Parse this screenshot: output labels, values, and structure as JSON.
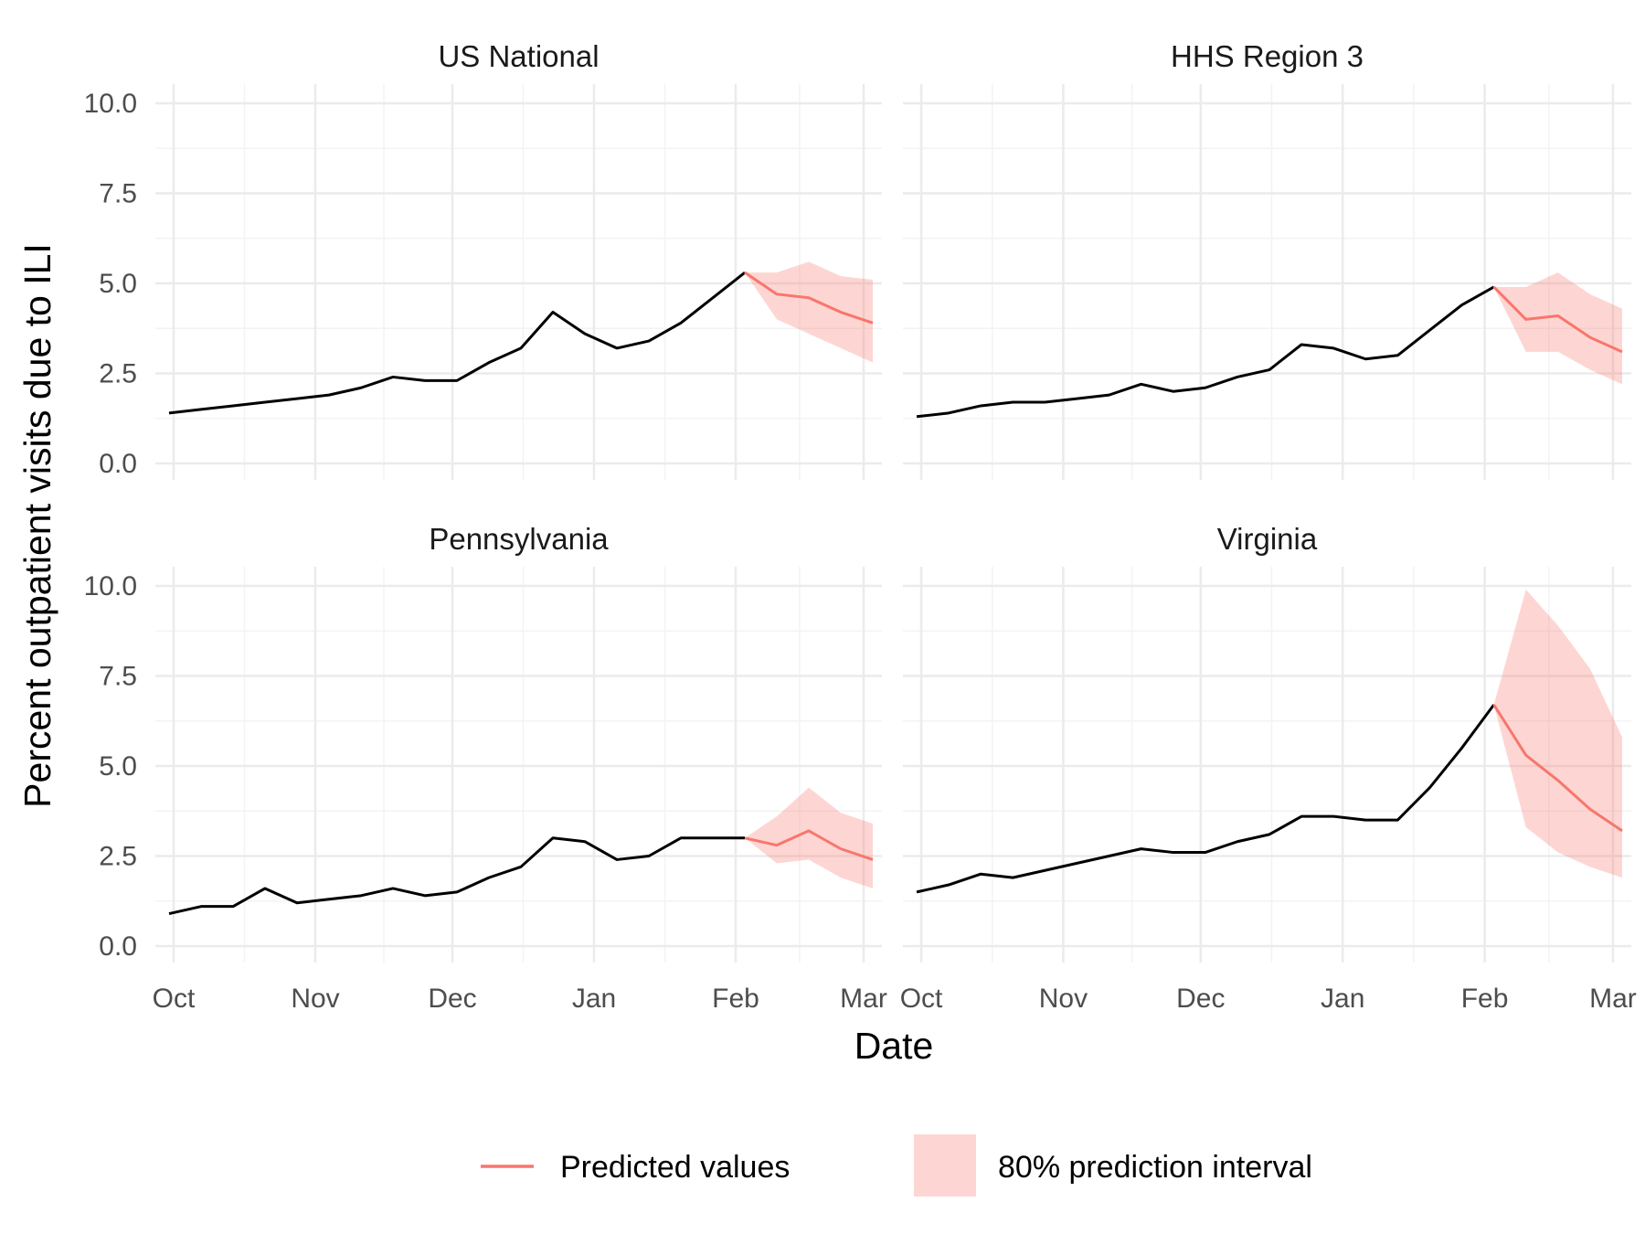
{
  "colors": {
    "observed": "#000000",
    "predicted": "#f8766d",
    "interval": "#f8766d",
    "grid_major": "#ebebeb",
    "grid_minor": "#f3f3f3",
    "background": "#ffffff"
  },
  "chart_data": {
    "type": "line",
    "xlabel": "Date",
    "ylabel": "Percent outpatient visits due to ILI",
    "ylim": [
      0,
      10
    ],
    "y_ticks": [
      "0.0",
      "2.5",
      "5.0",
      "7.5",
      "10.0"
    ],
    "x_ticks": [
      "Oct",
      "Nov",
      "Dec",
      "Jan",
      "Feb",
      "Mar"
    ],
    "x_tick_dates": [
      "2017-10-01",
      "2017-11-01",
      "2017-12-01",
      "2018-01-01",
      "2018-02-01",
      "2018-03-01"
    ],
    "xlim": [
      "2017-09-27",
      "2018-03-05"
    ],
    "grid": true,
    "legend": {
      "position": "bottom",
      "items": [
        {
          "key": "predicted",
          "label": "Predicted values"
        },
        {
          "key": "interval",
          "label": "80% prediction interval"
        }
      ]
    },
    "panels": [
      {
        "title": "US National",
        "observed": {
          "x": [
            "2017-09-30",
            "2017-10-07",
            "2017-10-14",
            "2017-10-21",
            "2017-10-28",
            "2017-11-04",
            "2017-11-11",
            "2017-11-18",
            "2017-11-25",
            "2017-12-02",
            "2017-12-09",
            "2017-12-16",
            "2017-12-23",
            "2017-12-30",
            "2018-01-06",
            "2018-01-13",
            "2018-01-20",
            "2018-01-27",
            "2018-02-03"
          ],
          "y": [
            1.4,
            1.5,
            1.6,
            1.7,
            1.8,
            1.9,
            2.1,
            2.4,
            2.3,
            2.3,
            2.8,
            3.2,
            4.2,
            3.6,
            3.2,
            3.4,
            3.9,
            4.6,
            5.3
          ]
        },
        "predicted": {
          "x": [
            "2018-02-03",
            "2018-02-10",
            "2018-02-17",
            "2018-02-24",
            "2018-03-03"
          ],
          "y": [
            5.3,
            4.7,
            4.6,
            4.2,
            3.9
          ],
          "lower": [
            5.3,
            4.0,
            3.6,
            3.2,
            2.8
          ],
          "upper": [
            5.3,
            5.3,
            5.6,
            5.2,
            5.1
          ]
        }
      },
      {
        "title": "HHS Region 3",
        "observed": {
          "x": [
            "2017-09-30",
            "2017-10-07",
            "2017-10-14",
            "2017-10-21",
            "2017-10-28",
            "2017-11-04",
            "2017-11-11",
            "2017-11-18",
            "2017-11-25",
            "2017-12-02",
            "2017-12-09",
            "2017-12-16",
            "2017-12-23",
            "2017-12-30",
            "2018-01-06",
            "2018-01-13",
            "2018-01-20",
            "2018-01-27",
            "2018-02-03"
          ],
          "y": [
            1.3,
            1.4,
            1.6,
            1.7,
            1.7,
            1.8,
            1.9,
            2.2,
            2.0,
            2.1,
            2.4,
            2.6,
            3.3,
            3.2,
            2.9,
            3.0,
            3.7,
            4.4,
            4.9
          ]
        },
        "predicted": {
          "x": [
            "2018-02-03",
            "2018-02-10",
            "2018-02-17",
            "2018-02-24",
            "2018-03-03"
          ],
          "y": [
            4.9,
            4.0,
            4.1,
            3.5,
            3.1
          ],
          "lower": [
            4.9,
            3.1,
            3.1,
            2.6,
            2.2
          ],
          "upper": [
            4.9,
            4.9,
            5.3,
            4.7,
            4.3
          ]
        }
      },
      {
        "title": "Pennsylvania",
        "observed": {
          "x": [
            "2017-09-30",
            "2017-10-07",
            "2017-10-14",
            "2017-10-21",
            "2017-10-28",
            "2017-11-04",
            "2017-11-11",
            "2017-11-18",
            "2017-11-25",
            "2017-12-02",
            "2017-12-09",
            "2017-12-16",
            "2017-12-23",
            "2017-12-30",
            "2018-01-06",
            "2018-01-13",
            "2018-01-20",
            "2018-01-27",
            "2018-02-03"
          ],
          "y": [
            0.9,
            1.1,
            1.1,
            1.6,
            1.2,
            1.3,
            1.4,
            1.6,
            1.4,
            1.5,
            1.9,
            2.2,
            3.0,
            2.9,
            2.4,
            2.5,
            3.0,
            3.0,
            3.0
          ]
        },
        "predicted": {
          "x": [
            "2018-02-03",
            "2018-02-10",
            "2018-02-17",
            "2018-02-24",
            "2018-03-03"
          ],
          "y": [
            3.0,
            2.8,
            3.2,
            2.7,
            2.4
          ],
          "lower": [
            3.0,
            2.3,
            2.4,
            1.9,
            1.6
          ],
          "upper": [
            3.0,
            3.6,
            4.4,
            3.7,
            3.4
          ]
        }
      },
      {
        "title": "Virginia",
        "observed": {
          "x": [
            "2017-09-30",
            "2017-10-07",
            "2017-10-14",
            "2017-10-21",
            "2017-10-28",
            "2017-11-04",
            "2017-11-11",
            "2017-11-18",
            "2017-11-25",
            "2017-12-02",
            "2017-12-09",
            "2017-12-16",
            "2017-12-23",
            "2017-12-30",
            "2018-01-06",
            "2018-01-13",
            "2018-01-20",
            "2018-01-27",
            "2018-02-03"
          ],
          "y": [
            1.5,
            1.7,
            2.0,
            1.9,
            2.1,
            2.3,
            2.5,
            2.7,
            2.6,
            2.6,
            2.9,
            3.1,
            3.6,
            3.6,
            3.5,
            3.5,
            4.4,
            5.5,
            6.7
          ]
        },
        "predicted": {
          "x": [
            "2018-02-03",
            "2018-02-10",
            "2018-02-17",
            "2018-02-24",
            "2018-03-03"
          ],
          "y": [
            6.7,
            5.3,
            4.6,
            3.8,
            3.2
          ],
          "lower": [
            6.7,
            3.3,
            2.6,
            2.2,
            1.9
          ],
          "upper": [
            6.7,
            9.9,
            8.9,
            7.7,
            5.8
          ]
        }
      }
    ]
  }
}
